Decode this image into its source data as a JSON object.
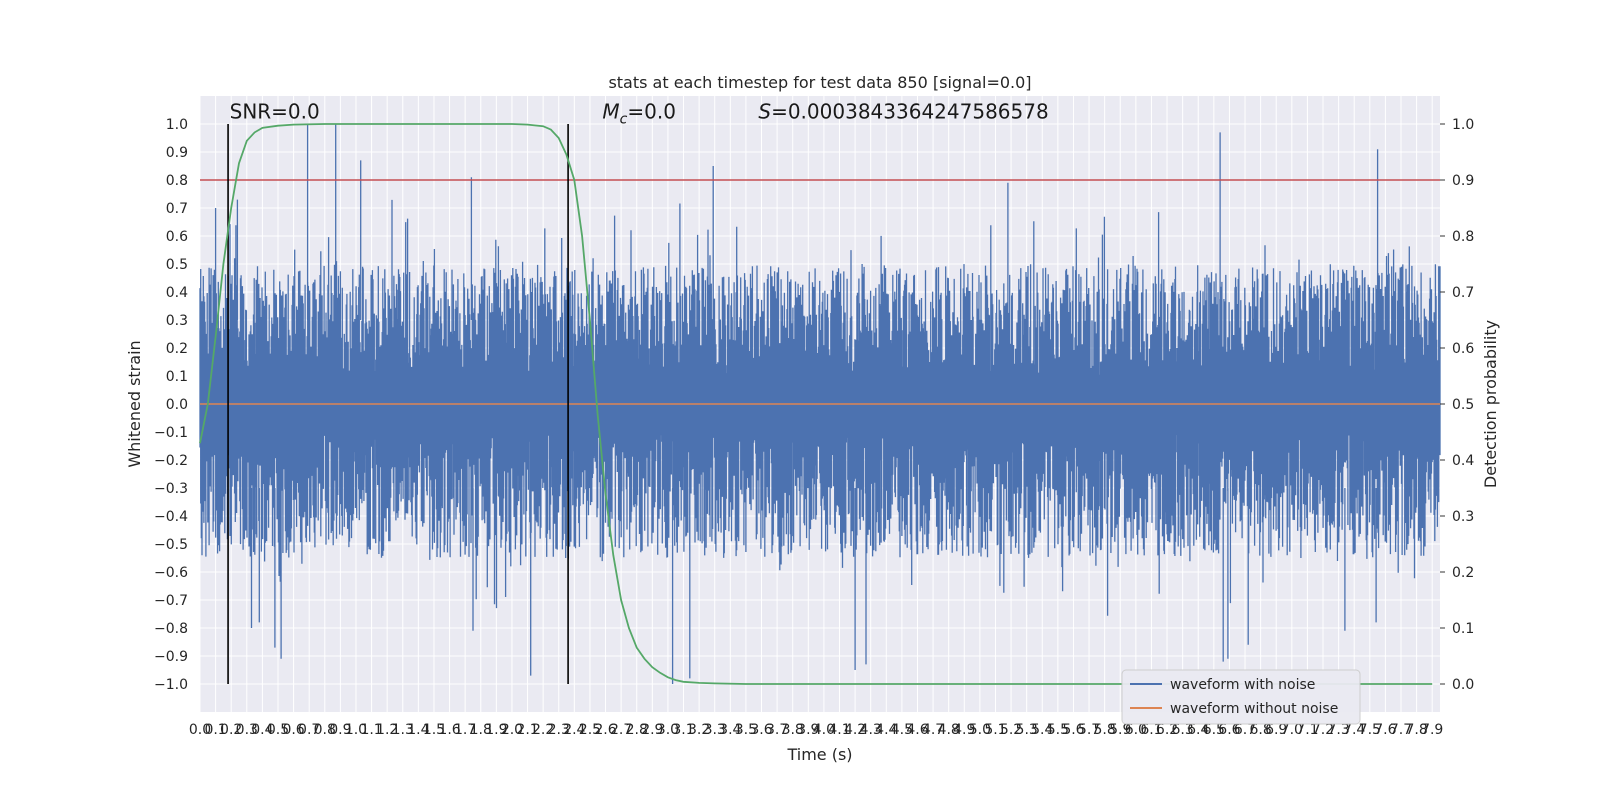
{
  "chart_data": {
    "type": "line",
    "title": "stats at each timestep for test data 850 [signal=0.0]",
    "xlabel": "Time (s)",
    "ylabel": "Whitened strain",
    "y2label": "Detection probability",
    "xlim": [
      0.0,
      7.95
    ],
    "ylim": [
      -1.1,
      1.1
    ],
    "y2lim": [
      -0.05,
      1.05
    ],
    "x_ticks": [
      0.0,
      0.1,
      0.2,
      0.3,
      0.4,
      0.5,
      0.6,
      0.7,
      0.8,
      0.9,
      1.0,
      1.1,
      1.2,
      1.3,
      1.4,
      1.5,
      1.6,
      1.7,
      1.8,
      1.9,
      2.0,
      2.1,
      2.2,
      2.3,
      2.4,
      2.5,
      2.6,
      2.7,
      2.8,
      2.9,
      3.0,
      3.1,
      3.2,
      3.3,
      3.4,
      3.5,
      3.6,
      3.7,
      3.8,
      3.9,
      4.0,
      4.1,
      4.2,
      4.3,
      4.4,
      4.5,
      4.6,
      4.7,
      4.8,
      4.9,
      5.0,
      5.1,
      5.2,
      5.3,
      5.4,
      5.5,
      5.6,
      5.7,
      5.8,
      5.9,
      6.0,
      6.1,
      6.2,
      6.3,
      6.4,
      6.5,
      6.6,
      6.7,
      6.8,
      6.9,
      7.0,
      7.1,
      7.2,
      7.3,
      7.4,
      7.5,
      7.6,
      7.7,
      7.8,
      7.9
    ],
    "y_ticks": [
      -1.0,
      -0.9,
      -0.8,
      -0.7,
      -0.6,
      -0.5,
      -0.4,
      -0.3,
      -0.2,
      -0.1,
      0.0,
      0.1,
      0.2,
      0.3,
      0.4,
      0.5,
      0.6,
      0.7,
      0.8,
      0.9,
      1.0
    ],
    "y2_ticks": [
      0.0,
      0.1,
      0.2,
      0.3,
      0.4,
      0.5,
      0.6,
      0.7,
      0.8,
      0.9,
      1.0
    ],
    "grid": true,
    "legend_position": "lower-right",
    "threshold": {
      "value": 0.9,
      "axis": "y2",
      "color": "#c44e52"
    },
    "vertical_markers": [
      {
        "x": 0.18,
        "y_range": [
          -1.0,
          1.0
        ]
      },
      {
        "x": 2.36,
        "y_range": [
          -1.0,
          1.0
        ]
      }
    ],
    "annotations": [
      {
        "text": "SNR=0.0",
        "x": 0.19,
        "y": 1.02
      },
      {
        "text": "M_c=0.0",
        "x": 2.58,
        "y": 1.02
      },
      {
        "text": "S=0.0003843364247586578",
        "x": 3.58,
        "y": 1.02
      }
    ],
    "series": [
      {
        "name": "waveform with noise",
        "color": "#4c72b0",
        "axis": "y",
        "noise_envelope": {
          "typical_max": 0.5,
          "typical_min": -0.55
        },
        "peaks": [
          [
            0.69,
            1.0
          ],
          [
            0.87,
            1.0
          ],
          [
            1.03,
            0.87
          ],
          [
            7.55,
            0.91
          ],
          [
            6.54,
            0.97
          ],
          [
            5.18,
            0.79
          ],
          [
            3.29,
            0.85
          ],
          [
            1.74,
            0.81
          ],
          [
            0.24,
            0.73
          ],
          [
            0.1,
            0.7
          ]
        ],
        "troughs": [
          [
            0.33,
            -0.8
          ],
          [
            0.38,
            -0.78
          ],
          [
            0.48,
            -0.87
          ],
          [
            0.52,
            -0.91
          ],
          [
            2.12,
            -0.97
          ],
          [
            3.03,
            -1.0
          ],
          [
            3.14,
            -0.98
          ],
          [
            4.2,
            -0.95
          ],
          [
            4.27,
            -0.93
          ],
          [
            6.56,
            -0.92
          ],
          [
            6.59,
            -0.91
          ],
          [
            6.72,
            -0.86
          ],
          [
            7.34,
            -0.81
          ],
          [
            7.54,
            -0.78
          ],
          [
            1.75,
            -0.81
          ]
        ]
      },
      {
        "name": "waveform without noise",
        "color": "#dd8452",
        "axis": "y",
        "x": [
          0.0,
          7.95
        ],
        "values": [
          0.0,
          0.0
        ]
      },
      {
        "name": "detection probability",
        "color": "#55a868",
        "axis": "y2",
        "x": [
          0.0,
          0.05,
          0.1,
          0.15,
          0.2,
          0.25,
          0.3,
          0.35,
          0.4,
          0.5,
          0.6,
          0.8,
          1.0,
          1.5,
          2.0,
          2.1,
          2.2,
          2.25,
          2.3,
          2.35,
          2.4,
          2.45,
          2.5,
          2.55,
          2.6,
          2.65,
          2.7,
          2.75,
          2.8,
          2.85,
          2.9,
          2.95,
          3.0,
          3.05,
          3.1,
          3.2,
          3.3,
          3.5,
          4.0,
          5.0,
          6.0,
          7.0,
          7.9
        ],
        "values": [
          0.43,
          0.5,
          0.62,
          0.75,
          0.85,
          0.93,
          0.97,
          0.985,
          0.993,
          0.997,
          0.999,
          1.0,
          1.0,
          1.0,
          1.0,
          0.999,
          0.996,
          0.99,
          0.975,
          0.945,
          0.9,
          0.8,
          0.65,
          0.48,
          0.34,
          0.23,
          0.15,
          0.1,
          0.065,
          0.045,
          0.03,
          0.02,
          0.012,
          0.007,
          0.004,
          0.002,
          0.001,
          0.0,
          0.0,
          0.0,
          0.0,
          0.0,
          0.0
        ]
      }
    ],
    "legend_entries": [
      {
        "label": "waveform with noise",
        "color": "#4c72b0"
      },
      {
        "label": "waveform without noise",
        "color": "#dd8452"
      }
    ]
  }
}
